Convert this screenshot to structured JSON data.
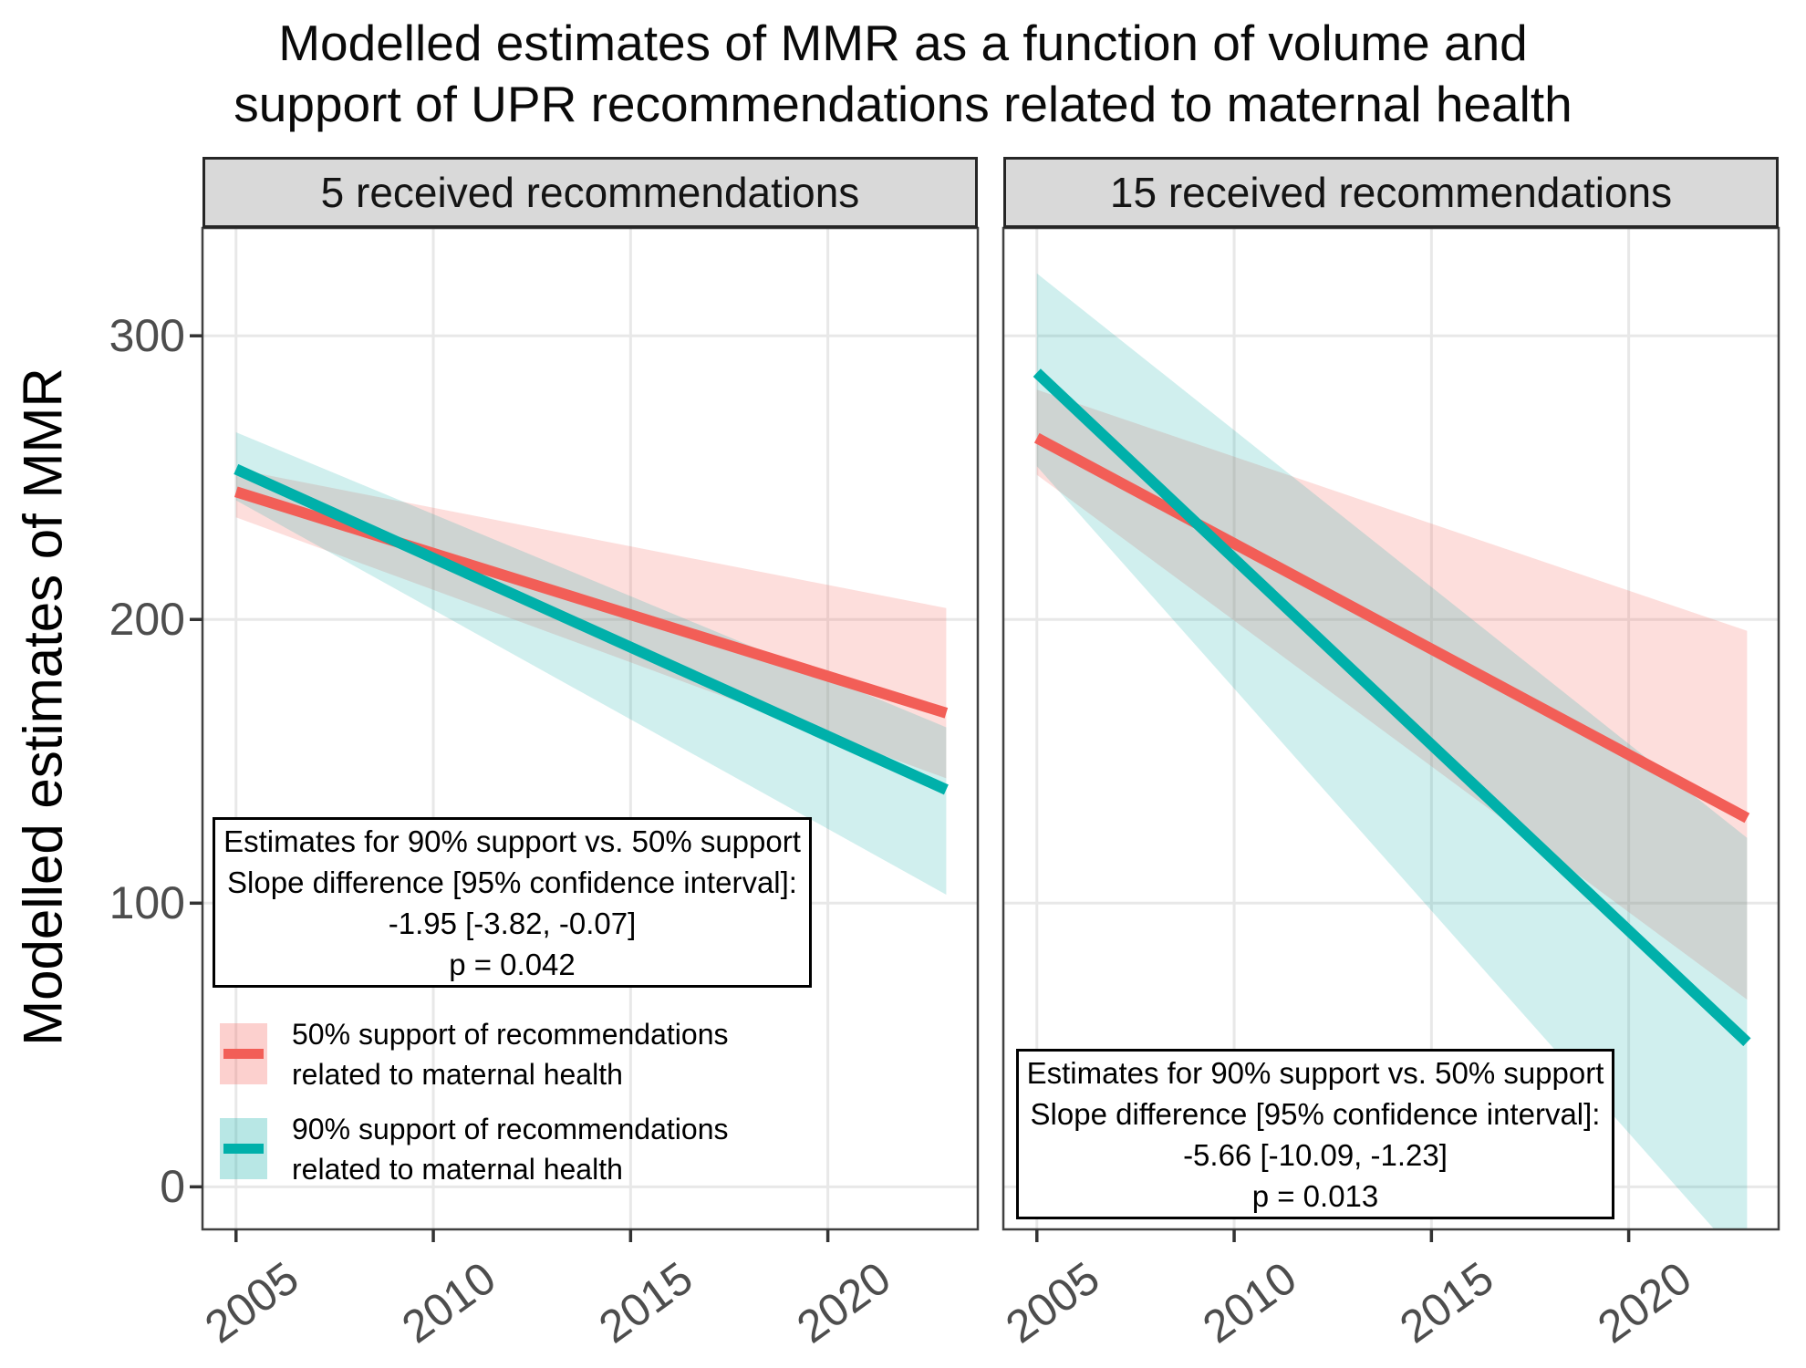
{
  "title_lines": [
    "Modelled estimates of MMR as a function of volume and",
    "support of UPR recommendations related to maternal health"
  ],
  "y_axis_title": "Modelled estimates of MMR",
  "chart_data": {
    "type": "line",
    "title": "Modelled estimates of MMR as a function of volume and support of UPR recommendations related to maternal health",
    "ylabel": "Modelled estimates of MMR",
    "xlabel": "",
    "x_ticks": [
      2005,
      2010,
      2015,
      2020
    ],
    "y_ticks": [
      0,
      100,
      200,
      300
    ],
    "x_domain": [
      2004.15,
      2023.8
    ],
    "y_domain": [
      -15,
      338
    ],
    "grid": "on",
    "colors": {
      "support_50_line": "#F25E57",
      "support_50_ribbon": "rgba(246,98,92,0.21)",
      "support_90_line": "#00B0AA",
      "support_90_ribbon": "rgba(20,175,170,0.20)",
      "strip_background": "#d9d9d9",
      "gridline": "#e8e8e8",
      "panel_border": "#404040",
      "tick_text": "#4d4d4d"
    },
    "panels": [
      {
        "label": "5 received recommendations",
        "annotation": {
          "lines": [
            "Estimates for 90% support vs. 50% support",
            "Slope difference [95% confidence interval]:",
            "-1.95 [-3.82, -0.07]",
            "p = 0.042"
          ]
        },
        "series": [
          {
            "name": "50% support of recommendations related to maternal health",
            "x": [
              2005,
              2023
            ],
            "y": [
              245,
              167
            ],
            "ci_upper": [
              253,
              204
            ],
            "ci_lower": [
              236,
              144
            ]
          },
          {
            "name": "90% support of recommendations related to maternal health",
            "x": [
              2005,
              2023
            ],
            "y": [
              253,
              140
            ],
            "ci_upper": [
              266,
              162
            ],
            "ci_lower": [
              242,
              103
            ]
          }
        ]
      },
      {
        "label": "15 received recommendations",
        "annotation": {
          "lines": [
            "Estimates for 90% support vs. 50% support",
            "Slope difference [95% confidence interval]:",
            "-5.66 [-10.09, -1.23]",
            "p = 0.013"
          ]
        },
        "series": [
          {
            "name": "50% support of recommendations related to maternal health",
            "x": [
              2005,
              2023
            ],
            "y": [
              264,
              130
            ],
            "ci_upper": [
              281,
              196
            ],
            "ci_lower": [
              251,
              66
            ]
          },
          {
            "name": "90% support of recommendations related to maternal health",
            "x": [
              2005,
              2023
            ],
            "y": [
              287,
              51
            ],
            "ci_upper": [
              322,
              123
            ],
            "ci_lower": [
              254,
              -28
            ]
          }
        ]
      }
    ],
    "legend": [
      {
        "label": "50% support of recommendations related to maternal health"
      },
      {
        "label": "90% support of recommendations related to maternal health"
      }
    ]
  }
}
